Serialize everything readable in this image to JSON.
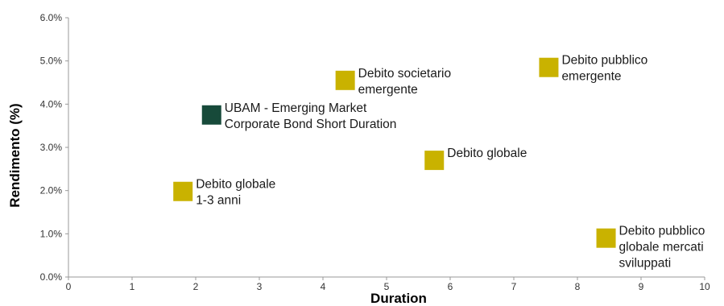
{
  "chart_data": {
    "type": "scatter",
    "xlabel": "Duration",
    "ylabel": "Rendimento (%)",
    "xlim": [
      0,
      10
    ],
    "ylim": [
      0,
      6
    ],
    "x_ticks": [
      "0",
      "1",
      "2",
      "3",
      "4",
      "5",
      "6",
      "7",
      "8",
      "9",
      "10"
    ],
    "y_ticks": [
      "0.0%",
      "1.0%",
      "2.0%",
      "3.0%",
      "4.0%",
      "5.0%",
      "6.0%"
    ],
    "grid": false,
    "colors": {
      "fund": "#174a3a",
      "index": "#c9b200"
    },
    "points": [
      {
        "label_lines": [
          "UBAM  - Emerging Market",
          "Corporate Bond Short Duration"
        ],
        "x": 2.25,
        "y": 3.75,
        "kind": "fund"
      },
      {
        "label_lines": [
          "Debito societario",
          "emergente"
        ],
        "x": 4.35,
        "y": 4.55,
        "kind": "index"
      },
      {
        "label_lines": [
          "Debito pubblico",
          "emergente"
        ],
        "x": 7.55,
        "y": 4.85,
        "kind": "index"
      },
      {
        "label_lines": [
          "Debito globale"
        ],
        "x": 5.75,
        "y": 2.7,
        "kind": "index"
      },
      {
        "label_lines": [
          "Debito globale",
          "1-3 anni"
        ],
        "x": 1.8,
        "y": 1.98,
        "kind": "index"
      },
      {
        "label_lines": [
          "Debito pubblico",
          "globale mercati",
          "sviluppati"
        ],
        "x": 8.45,
        "y": 0.9,
        "kind": "index"
      }
    ]
  }
}
